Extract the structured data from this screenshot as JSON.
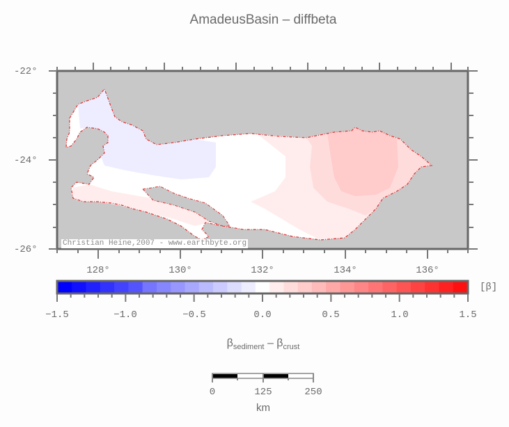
{
  "title": "AmadeusBasin – diffbeta",
  "map": {
    "lat_labels": [
      "-22°",
      "-24°",
      "-26°"
    ],
    "lon_labels": [
      "128°",
      "130°",
      "132°",
      "134°",
      "136°"
    ],
    "lon_range": [
      127,
      137
    ],
    "lat_range": [
      -26,
      -22
    ],
    "background_color": "#c8c8c8",
    "outline_color": "#e03030",
    "credit": "Christian Heine,2007 - www.earthbyte.org"
  },
  "colorbar": {
    "tick_labels": [
      "−1.5",
      "−1.0",
      "−0.5",
      "0.0",
      "0.5",
      "1.0",
      "1.5"
    ],
    "unit": "[β]",
    "range": [
      -1.5,
      1.5
    ],
    "colors": [
      "#0000ff",
      "#1010ff",
      "#2121ff",
      "#3232ff",
      "#4343ff",
      "#5454ff",
      "#7575ff",
      "#8686ff",
      "#9797ff",
      "#a8a8ff",
      "#babaff",
      "#cbcbff",
      "#dcdcff",
      "#ededff",
      "#ffffff",
      "#ffeded",
      "#ffdcdc",
      "#ffcbcb",
      "#ffbaba",
      "#ffa8a8",
      "#ff9797",
      "#ff8686",
      "#ff7575",
      "#ff6464",
      "#ff5454",
      "#ff4343",
      "#ff3232",
      "#ff2121",
      "#ff1010"
    ],
    "title_main": "β",
    "title_sub1": "sediment",
    "title_mid": " – β",
    "title_sub2": "crust"
  },
  "scalebar": {
    "labels": [
      "0",
      "125",
      "250"
    ],
    "unit": "km"
  }
}
